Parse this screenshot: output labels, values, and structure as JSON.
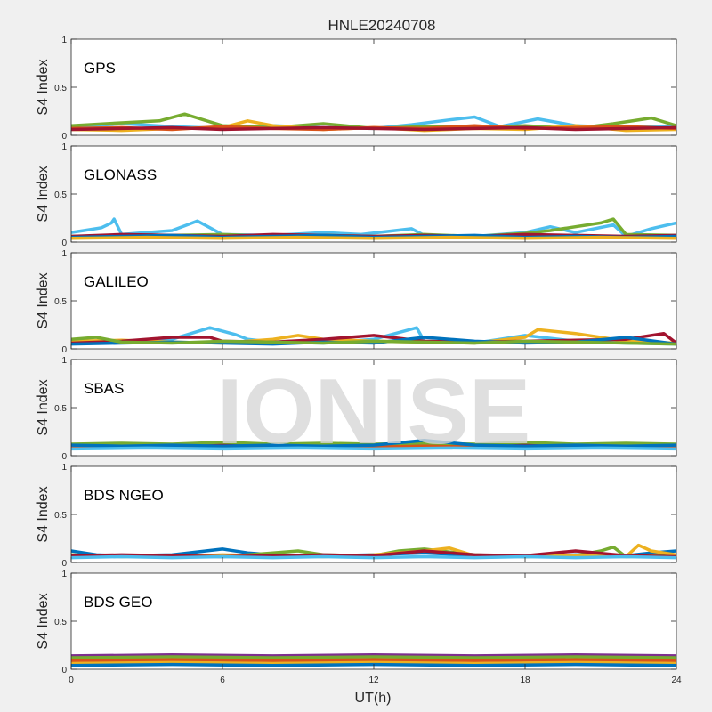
{
  "chart_data": {
    "type": "line",
    "title": "HNLE20240708",
    "watermark": "IONISE",
    "xlabel": "UT(h)",
    "ylabel": "S4 Index",
    "xlim": [
      0,
      24
    ],
    "ylim": [
      0,
      1
    ],
    "x_ticks": [
      "0",
      "6",
      "12",
      "18",
      "24"
    ],
    "y_ticks": [
      "0",
      "0.5",
      "1"
    ],
    "grid": false,
    "series_colors": [
      "#0072bd",
      "#d95319",
      "#edb120",
      "#7e2f8e",
      "#77ac30",
      "#4dbeee",
      "#a2142f"
    ],
    "panels": [
      {
        "label": "GPS",
        "series": [
          {
            "color": "#4dbeee",
            "x": [
              0,
              2,
              4,
              6,
              8,
              10,
              12,
              13.5,
              15,
              16,
              17,
              18.5,
              20,
              22,
              24
            ],
            "y": [
              0.08,
              0.12,
              0.09,
              0.07,
              0.1,
              0.08,
              0.07,
              0.11,
              0.16,
              0.19,
              0.09,
              0.17,
              0.1,
              0.08,
              0.1
            ]
          },
          {
            "color": "#77ac30",
            "x": [
              0,
              2,
              3.5,
              4.5,
              6,
              8,
              10,
              12,
              14,
              16,
              18,
              20,
              21.5,
              23,
              24
            ],
            "y": [
              0.1,
              0.13,
              0.15,
              0.22,
              0.1,
              0.08,
              0.12,
              0.07,
              0.09,
              0.08,
              0.1,
              0.07,
              0.12,
              0.18,
              0.1
            ]
          },
          {
            "color": "#edb120",
            "x": [
              0,
              2,
              4,
              6,
              7,
              8,
              10,
              12,
              14,
              16,
              18,
              20,
              22,
              24
            ],
            "y": [
              0.06,
              0.05,
              0.07,
              0.08,
              0.15,
              0.1,
              0.06,
              0.08,
              0.05,
              0.07,
              0.06,
              0.1,
              0.05,
              0.06
            ]
          },
          {
            "color": "#d95319",
            "x": [
              0,
              2,
              4,
              6,
              8,
              10,
              12,
              14,
              16,
              18,
              20,
              22,
              24
            ],
            "y": [
              0.07,
              0.08,
              0.06,
              0.09,
              0.07,
              0.06,
              0.08,
              0.07,
              0.1,
              0.07,
              0.08,
              0.09,
              0.07
            ]
          },
          {
            "color": "#a2142f",
            "x": [
              0,
              2,
              4,
              6,
              8,
              10,
              12,
              14,
              16,
              18,
              20,
              22,
              24
            ],
            "y": [
              0.06,
              0.07,
              0.08,
              0.06,
              0.07,
              0.08,
              0.07,
              0.06,
              0.07,
              0.08,
              0.06,
              0.07,
              0.08
            ]
          }
        ]
      },
      {
        "label": "GLONASS",
        "series": [
          {
            "color": "#4dbeee",
            "x": [
              0,
              0.5,
              1.2,
              1.6,
              1.7,
              2,
              4,
              4.6,
              5,
              6,
              8,
              10,
              11.5,
              13.5,
              14,
              16,
              18,
              19,
              20,
              21.5,
              22,
              23,
              24
            ],
            "y": [
              0.1,
              0.12,
              0.15,
              0.2,
              0.24,
              0.08,
              0.12,
              0.18,
              0.22,
              0.08,
              0.07,
              0.1,
              0.08,
              0.14,
              0.07,
              0.06,
              0.1,
              0.16,
              0.1,
              0.18,
              0.06,
              0.14,
              0.2
            ]
          },
          {
            "color": "#77ac30",
            "x": [
              0,
              4,
              6,
              8,
              10,
              12,
              14,
              16,
              18,
              19,
              20,
              21,
              21.5,
              22,
              24
            ],
            "y": [
              0.06,
              0.07,
              0.08,
              0.06,
              0.07,
              0.06,
              0.08,
              0.06,
              0.09,
              0.12,
              0.16,
              0.2,
              0.24,
              0.08,
              0.07
            ]
          },
          {
            "color": "#a2142f",
            "x": [
              0,
              2,
              4,
              6,
              8,
              10,
              12,
              14,
              16,
              18,
              20,
              22,
              24
            ],
            "y": [
              0.06,
              0.08,
              0.07,
              0.06,
              0.08,
              0.07,
              0.06,
              0.07,
              0.06,
              0.08,
              0.07,
              0.06,
              0.07
            ]
          },
          {
            "color": "#0072bd",
            "x": [
              0,
              2,
              4,
              6,
              8,
              10,
              12,
              14,
              16,
              18,
              20,
              22,
              24
            ],
            "y": [
              0.05,
              0.06,
              0.07,
              0.05,
              0.06,
              0.07,
              0.05,
              0.06,
              0.07,
              0.05,
              0.06,
              0.05,
              0.06
            ]
          },
          {
            "color": "#edb120",
            "x": [
              0,
              3,
              6,
              9,
              12,
              15,
              18,
              21,
              24
            ],
            "y": [
              0.04,
              0.05,
              0.04,
              0.05,
              0.04,
              0.05,
              0.04,
              0.05,
              0.04
            ]
          }
        ]
      },
      {
        "label": "GALILEO",
        "series": [
          {
            "color": "#4dbeee",
            "x": [
              0,
              2,
              4,
              5.5,
              6.5,
              7,
              8,
              10,
              12,
              13,
              13.7,
              14,
              16,
              17,
              18,
              20,
              22,
              24
            ],
            "y": [
              0.06,
              0.07,
              0.1,
              0.22,
              0.15,
              0.1,
              0.07,
              0.06,
              0.1,
              0.17,
              0.22,
              0.08,
              0.06,
              0.1,
              0.14,
              0.08,
              0.06,
              0.05
            ]
          },
          {
            "color": "#edb120",
            "x": [
              0,
              2,
              4,
              6,
              8,
              9,
              10,
              12,
              14,
              16,
              18,
              18.5,
              20,
              21,
              22,
              24
            ],
            "y": [
              0.08,
              0.09,
              0.07,
              0.06,
              0.1,
              0.14,
              0.1,
              0.08,
              0.07,
              0.06,
              0.12,
              0.2,
              0.16,
              0.12,
              0.08,
              0.06
            ]
          },
          {
            "color": "#a2142f",
            "x": [
              0,
              2,
              4,
              5.5,
              6,
              8,
              10,
              12,
              13,
              14,
              16,
              18,
              20,
              22,
              23.5,
              24
            ],
            "y": [
              0.06,
              0.08,
              0.12,
              0.12,
              0.08,
              0.07,
              0.1,
              0.14,
              0.11,
              0.08,
              0.07,
              0.08,
              0.09,
              0.1,
              0.16,
              0.06
            ]
          },
          {
            "color": "#0072bd",
            "x": [
              0,
              2,
              4,
              6,
              8,
              10,
              12,
              14,
              16,
              18,
              20,
              22,
              24
            ],
            "y": [
              0.05,
              0.06,
              0.07,
              0.06,
              0.05,
              0.07,
              0.06,
              0.12,
              0.08,
              0.06,
              0.07,
              0.12,
              0.05
            ]
          },
          {
            "color": "#77ac30",
            "x": [
              0,
              1,
              2,
              4,
              6,
              8,
              10,
              12,
              14,
              16,
              18,
              20,
              22,
              24
            ],
            "y": [
              0.1,
              0.12,
              0.07,
              0.06,
              0.08,
              0.07,
              0.06,
              0.08,
              0.07,
              0.06,
              0.08,
              0.07,
              0.06,
              0.05
            ]
          }
        ]
      },
      {
        "label": "SBAS",
        "series": [
          {
            "color": "#a2142f",
            "x": [
              0,
              2,
              4,
              6,
              8,
              10,
              12,
              14,
              16,
              18,
              20,
              22,
              24
            ],
            "y": [
              0.1,
              0.11,
              0.1,
              0.12,
              0.1,
              0.11,
              0.1,
              0.12,
              0.1,
              0.11,
              0.1,
              0.11,
              0.1
            ]
          },
          {
            "color": "#77ac30",
            "x": [
              0,
              2,
              4,
              6,
              8,
              10,
              12,
              14,
              16,
              18,
              20,
              22,
              24
            ],
            "y": [
              0.12,
              0.13,
              0.12,
              0.14,
              0.12,
              0.13,
              0.12,
              0.13,
              0.12,
              0.14,
              0.12,
              0.13,
              0.12
            ]
          },
          {
            "color": "#d95319",
            "x": [
              0,
              2,
              4,
              6,
              8,
              10,
              12,
              14,
              16,
              18,
              20,
              22,
              24
            ],
            "y": [
              0.09,
              0.1,
              0.09,
              0.1,
              0.09,
              0.1,
              0.09,
              0.1,
              0.09,
              0.1,
              0.09,
              0.1,
              0.09
            ]
          },
          {
            "color": "#0072bd",
            "x": [
              0,
              2,
              4,
              6,
              8,
              10,
              12,
              14,
              16,
              18,
              20,
              22,
              24
            ],
            "y": [
              0.11,
              0.1,
              0.11,
              0.1,
              0.11,
              0.1,
              0.11,
              0.16,
              0.11,
              0.1,
              0.11,
              0.1,
              0.11
            ]
          },
          {
            "color": "#4dbeee",
            "x": [
              0,
              3,
              6,
              9,
              12,
              15,
              18,
              21,
              24
            ],
            "y": [
              0.07,
              0.08,
              0.07,
              0.08,
              0.07,
              0.08,
              0.07,
              0.08,
              0.07
            ]
          }
        ]
      },
      {
        "label": "BDS NGEO",
        "series": [
          {
            "color": "#0072bd",
            "x": [
              0,
              1,
              2,
              4,
              6,
              7,
              8,
              10,
              12,
              14,
              16,
              18,
              20,
              22,
              23,
              24
            ],
            "y": [
              0.12,
              0.08,
              0.07,
              0.08,
              0.14,
              0.1,
              0.08,
              0.07,
              0.08,
              0.1,
              0.07,
              0.06,
              0.08,
              0.07,
              0.1,
              0.12
            ]
          },
          {
            "color": "#77ac30",
            "x": [
              0,
              2,
              4,
              6,
              8,
              9,
              10,
              12,
              13,
              14,
              16,
              18,
              20,
              21,
              21.5,
              22,
              24
            ],
            "y": [
              0.08,
              0.06,
              0.07,
              0.06,
              0.1,
              0.12,
              0.08,
              0.07,
              0.12,
              0.14,
              0.08,
              0.06,
              0.07,
              0.12,
              0.16,
              0.06,
              0.07
            ]
          },
          {
            "color": "#edb120",
            "x": [
              0,
              2,
              4,
              6,
              8,
              10,
              12,
              14,
              15,
              16,
              18,
              20,
              22,
              22.5,
              23,
              24
            ],
            "y": [
              0.06,
              0.07,
              0.06,
              0.08,
              0.07,
              0.06,
              0.08,
              0.12,
              0.15,
              0.07,
              0.06,
              0.07,
              0.06,
              0.18,
              0.12,
              0.08
            ]
          },
          {
            "color": "#a2142f",
            "x": [
              0,
              2,
              4,
              6,
              8,
              10,
              12,
              14,
              15,
              16,
              18,
              20,
              22,
              24
            ],
            "y": [
              0.07,
              0.08,
              0.07,
              0.06,
              0.07,
              0.08,
              0.07,
              0.12,
              0.1,
              0.08,
              0.07,
              0.12,
              0.07,
              0.06
            ]
          },
          {
            "color": "#4dbeee",
            "x": [
              0,
              2,
              4,
              6,
              8,
              10,
              12,
              14,
              16,
              18,
              20,
              22,
              24
            ],
            "y": [
              0.05,
              0.06,
              0.05,
              0.06,
              0.05,
              0.06,
              0.05,
              0.06,
              0.05,
              0.06,
              0.05,
              0.06,
              0.05
            ]
          }
        ]
      },
      {
        "label": "BDS GEO",
        "series": [
          {
            "color": "#7e2f8e",
            "x": [
              0,
              4,
              8,
              12,
              16,
              20,
              24
            ],
            "y": [
              0.14,
              0.15,
              0.14,
              0.15,
              0.14,
              0.15,
              0.14
            ]
          },
          {
            "color": "#77ac30",
            "x": [
              0,
              4,
              8,
              12,
              16,
              20,
              24
            ],
            "y": [
              0.12,
              0.13,
              0.12,
              0.13,
              0.12,
              0.13,
              0.12
            ]
          },
          {
            "color": "#d95319",
            "x": [
              0,
              4,
              8,
              12,
              16,
              20,
              24
            ],
            "y": [
              0.09,
              0.1,
              0.09,
              0.1,
              0.09,
              0.1,
              0.09
            ]
          },
          {
            "color": "#edb120",
            "x": [
              0,
              4,
              8,
              12,
              16,
              20,
              24
            ],
            "y": [
              0.06,
              0.07,
              0.06,
              0.07,
              0.06,
              0.07,
              0.06
            ]
          },
          {
            "color": "#0072bd",
            "x": [
              0,
              4,
              8,
              12,
              16,
              20,
              24
            ],
            "y": [
              0.04,
              0.05,
              0.04,
              0.05,
              0.04,
              0.05,
              0.04
            ]
          }
        ]
      }
    ]
  }
}
